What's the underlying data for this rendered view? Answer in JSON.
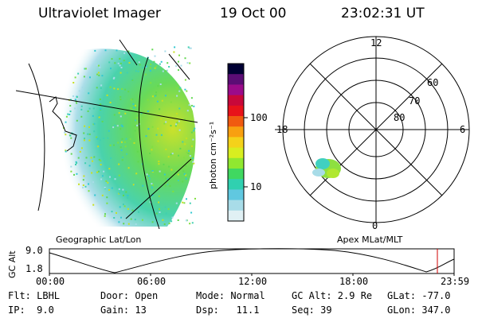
{
  "header": {
    "instrument": "Ultraviolet Imager",
    "date": "19 Oct 00",
    "time": "23:02:31 UT"
  },
  "geo_panel": {
    "caption": "Geographic Lat/Lon"
  },
  "polar_panel": {
    "caption": "Apex MLat/MLT",
    "mlt_labels": [
      "12",
      "18",
      "6",
      "0"
    ],
    "lat_labels": [
      "60",
      "70",
      "80"
    ]
  },
  "colorbar": {
    "unit_label": "photon cm⁻²s⁻¹",
    "ticks": [
      "100",
      "10"
    ],
    "colors": [
      "#000033",
      "#5b0d75",
      "#9b0b8a",
      "#c8083a",
      "#e8121a",
      "#f05a10",
      "#f8a010",
      "#f4d21a",
      "#d8ee20",
      "#90e830",
      "#40d860",
      "#30d0b0",
      "#60c8e0",
      "#a8dce8",
      "#e0f0f4"
    ]
  },
  "orbit_plot": {
    "ylabel": "GC Alt",
    "yticks": [
      "9.0",
      "1.8"
    ],
    "xticks": [
      "00:00",
      "06:00",
      "12:00",
      "18:00",
      "23:59"
    ],
    "current_time_marker": "23:02"
  },
  "status": {
    "row1": [
      "Flt: LBHL",
      "Door: Open",
      "Mode: Normal",
      "GC Alt: 2.9 Re",
      "GLat: -77.0"
    ],
    "row2": [
      "IP:  9.0",
      "Gain: 13",
      "Dsp:   11.1",
      "Seq: 39",
      "GLon: 347.0"
    ]
  },
  "accent_colors": {
    "marker": "#d00000"
  }
}
